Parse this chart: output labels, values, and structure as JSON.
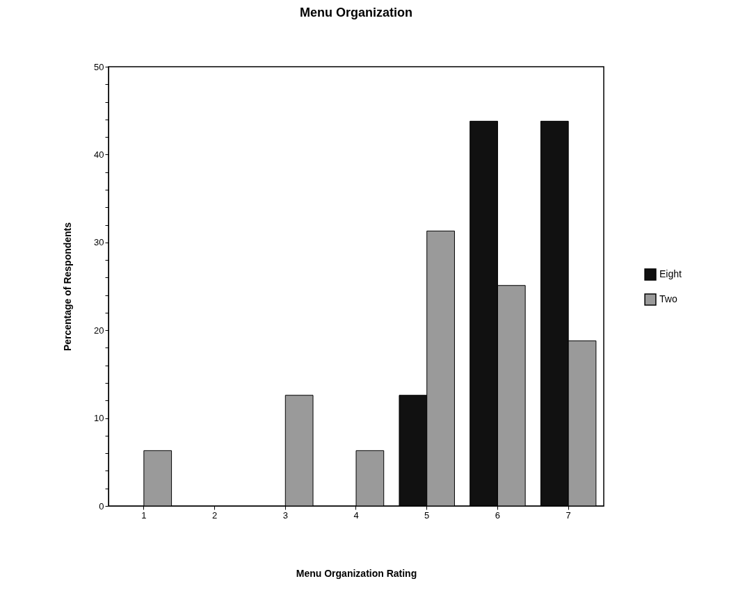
{
  "chart_data": {
    "type": "bar",
    "title": "Menu Organization",
    "xlabel": "Menu Organization Rating",
    "ylabel": "Percentage  of  Respondents",
    "categories": [
      "1",
      "2",
      "3",
      "4",
      "5",
      "6",
      "7"
    ],
    "series": [
      {
        "name": "Eight",
        "color": "#111111",
        "values": [
          0,
          0,
          0,
          0,
          12.6,
          43.8,
          43.8
        ]
      },
      {
        "name": "Two",
        "color": "#9a9a9a",
        "values": [
          6.3,
          0,
          12.6,
          6.3,
          31.3,
          25.1,
          18.8
        ]
      }
    ],
    "ylim": [
      0,
      50
    ],
    "yticks": [
      0,
      {
        "value": 2,
        "label": null
      },
      {
        "value": 4,
        "label": null
      },
      {
        "value": 6,
        "label": null
      },
      {
        "value": 8,
        "label": null
      },
      10,
      {
        "value": 12,
        "label": null
      },
      {
        "value": 14,
        "label": null
      },
      {
        "value": 16,
        "label": null
      },
      {
        "value": 18,
        "label": null
      },
      20,
      {
        "value": 22,
        "label": null
      },
      {
        "value": 24,
        "label": null
      },
      {
        "value": 26,
        "label": null
      },
      {
        "value": 28,
        "label": null
      },
      30,
      {
        "value": 32,
        "label": null
      },
      {
        "value": 34,
        "label": null
      },
      {
        "value": 36,
        "label": null
      },
      {
        "value": 38,
        "label": null
      },
      40,
      {
        "value": 42,
        "label": null
      },
      {
        "value": 44,
        "label": null
      },
      {
        "value": 46,
        "label": null
      },
      {
        "value": 48,
        "label": null
      },
      50
    ],
    "grid": false,
    "legend": "right"
  }
}
